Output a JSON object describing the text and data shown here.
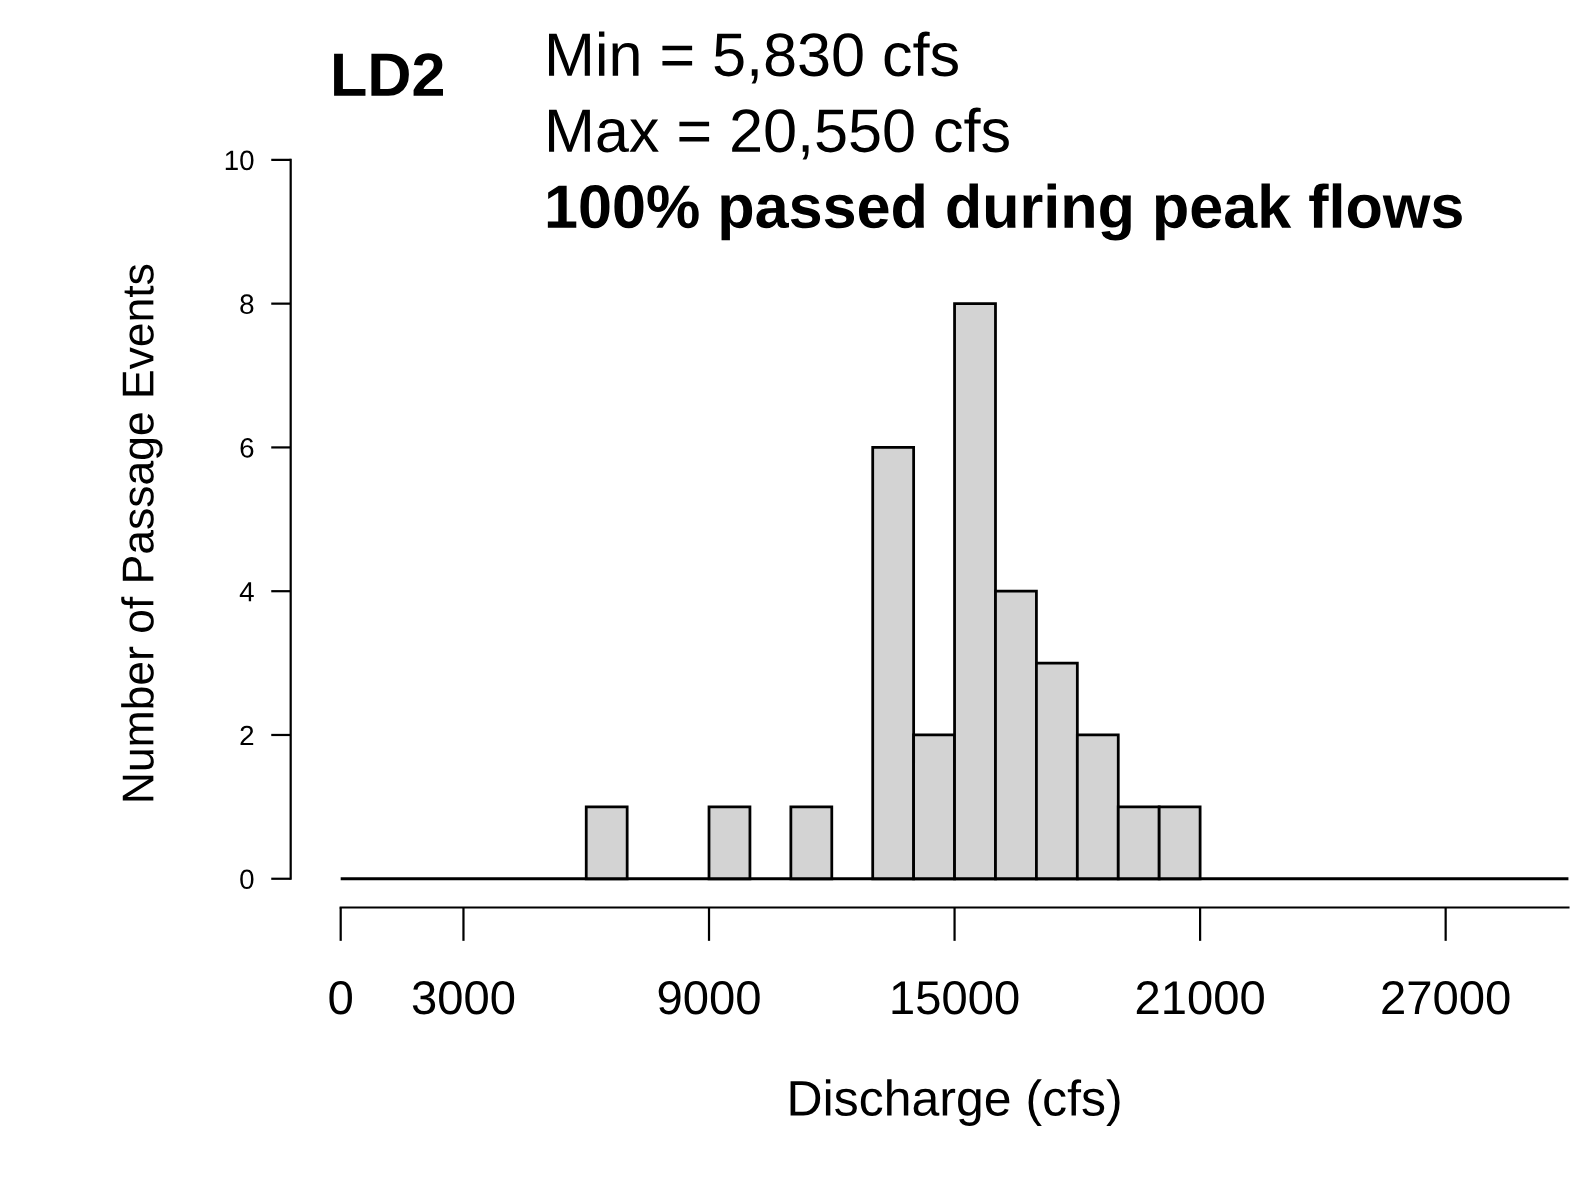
{
  "chart_data": {
    "type": "histogram",
    "title": "LD2",
    "annotations": [
      "Min = 5,830 cfs",
      "Max = 20,550 cfs",
      "100% passed during peak flows"
    ],
    "xlabel": "Discharge (cfs)",
    "ylabel": "Number of Passage Events",
    "bins": [
      6000,
      7000,
      8000,
      9000,
      10000,
      11000,
      12000,
      13000,
      14000,
      15000,
      16000,
      17000,
      18000,
      19000,
      20000,
      21000
    ],
    "values": [
      1,
      0,
      0,
      1,
      0,
      1,
      0,
      6,
      2,
      8,
      4,
      3,
      2,
      1,
      1
    ],
    "color": "#d3d3d3",
    "xlim": [
      0,
      30000
    ],
    "xticks": [
      0,
      3000,
      9000,
      15000,
      21000,
      27000
    ],
    "ylim": [
      -0.4,
      10
    ],
    "yticks": [
      0,
      2,
      4,
      6,
      8,
      10
    ],
    "ref_lines": [
      {
        "axis": "y",
        "value": 0,
        "label": null,
        "color": "#000000"
      }
    ],
    "grid": false,
    "legend": false
  }
}
